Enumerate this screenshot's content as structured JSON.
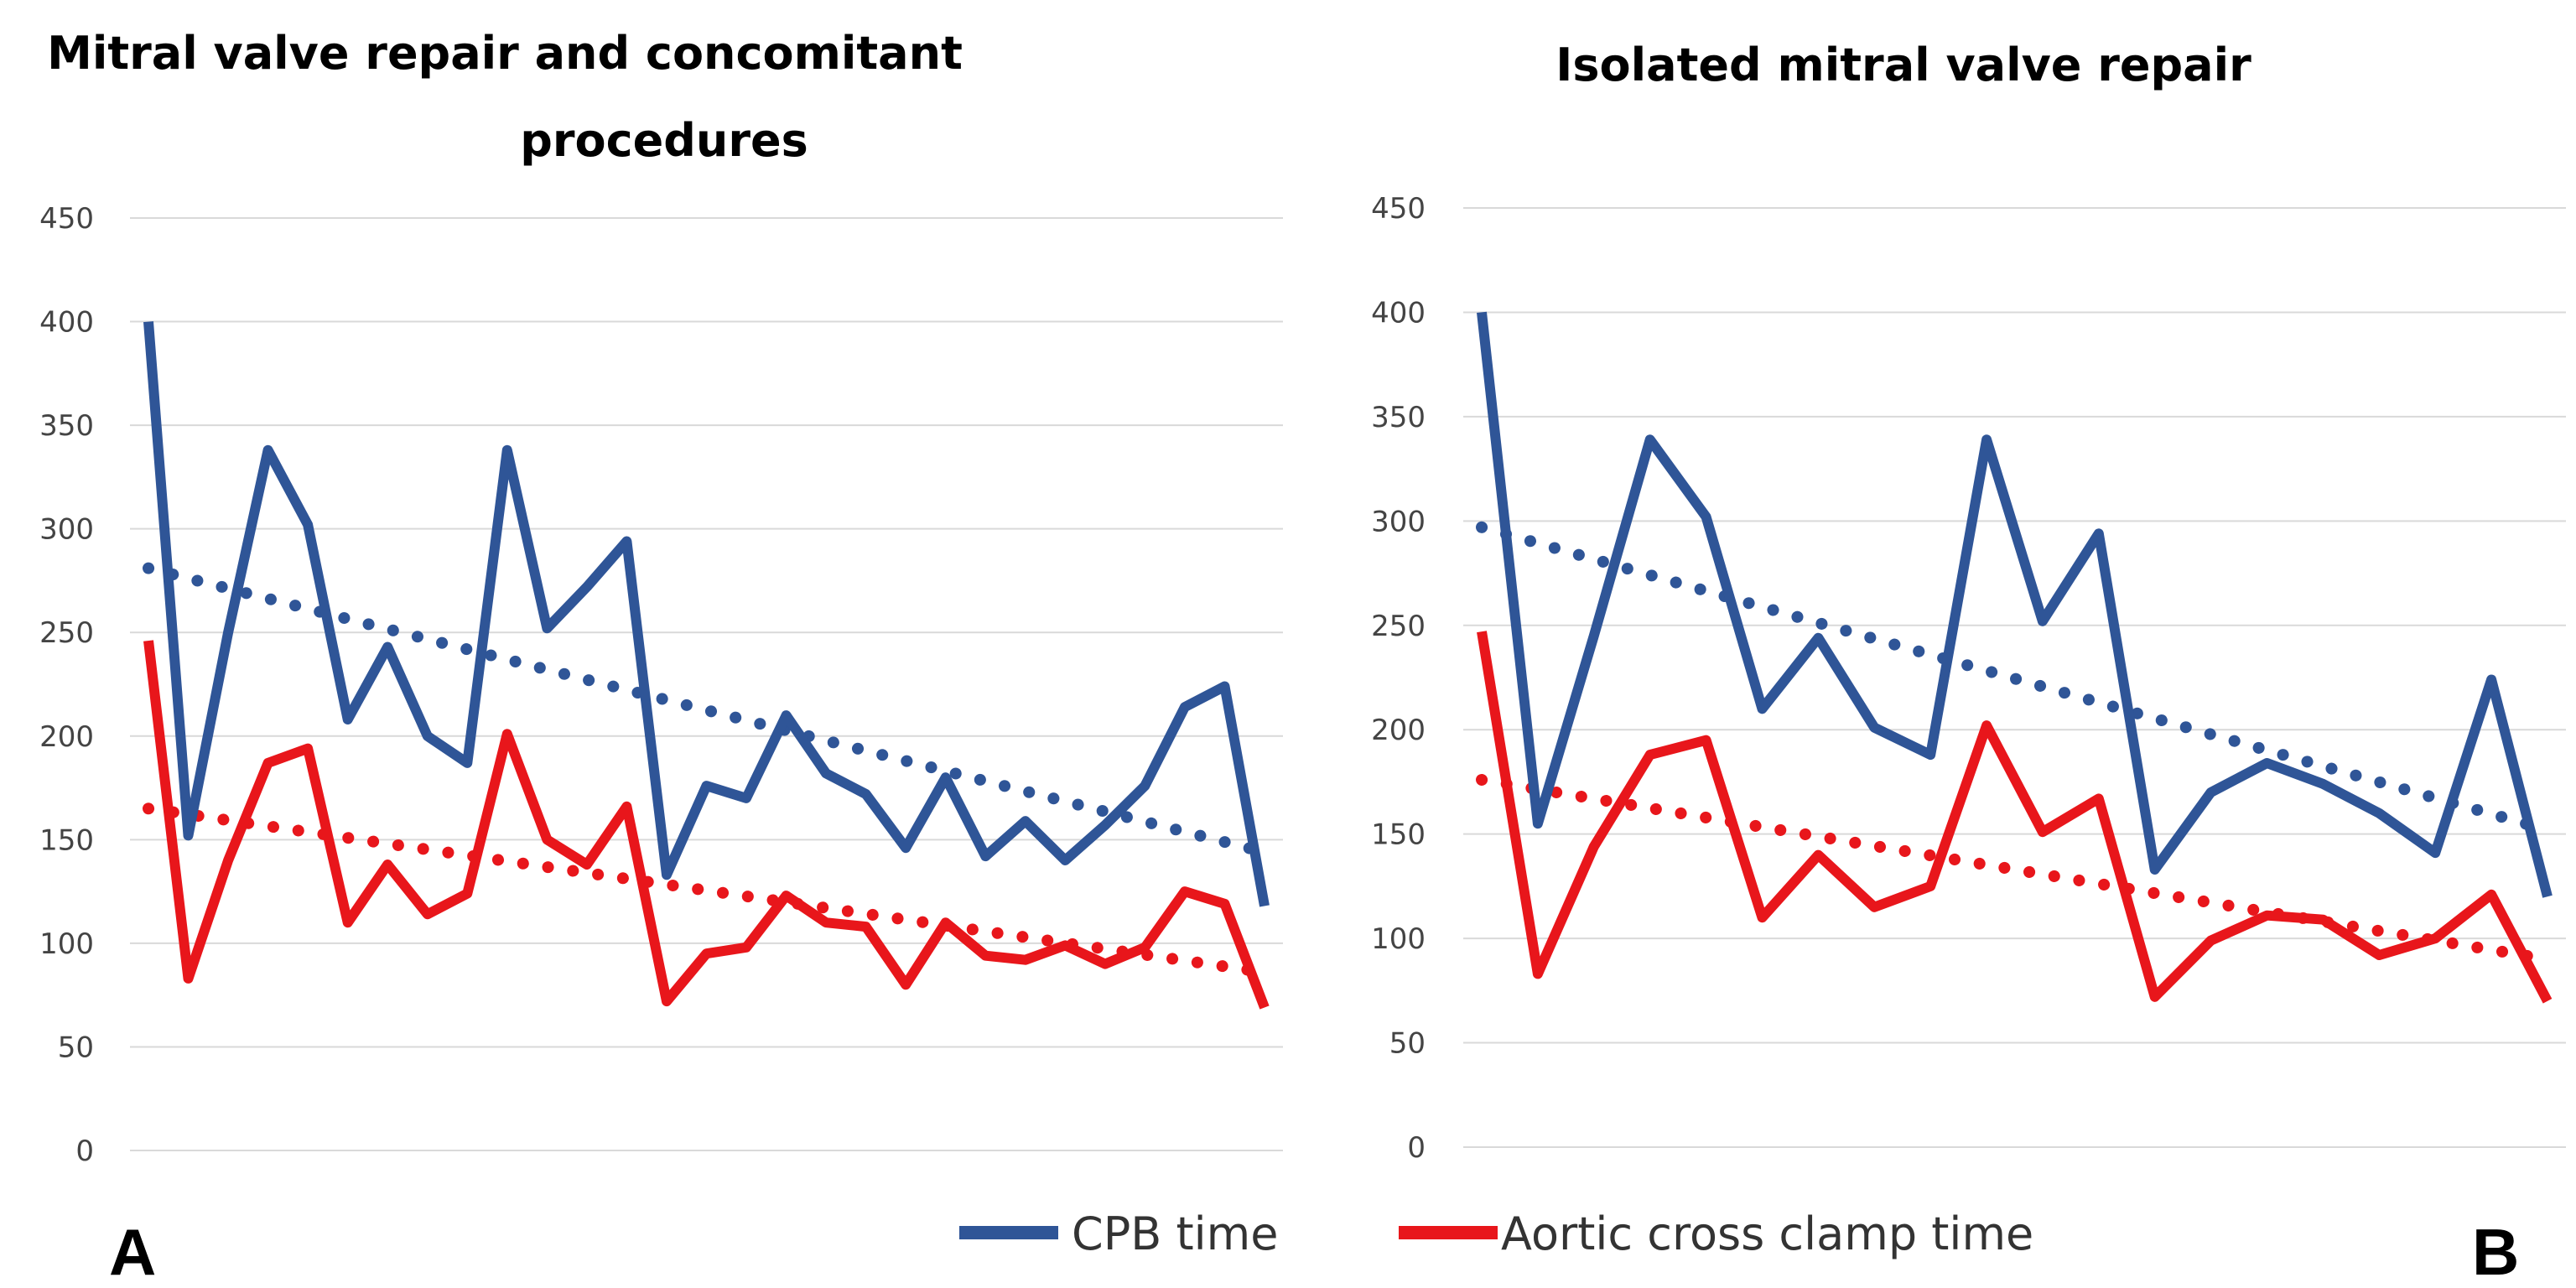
{
  "panel_labels": [
    "A",
    "B"
  ],
  "legend": {
    "cpb_label": "CPB time",
    "acc_label": "Aortic cross clamp time",
    "cpb_color": "#2F5597",
    "acc_color": "#E8161B"
  },
  "chart_data": [
    {
      "type": "line",
      "title_lines": [
        "Mitral valve repair and concomitant",
        "procedures"
      ],
      "ylim": [
        0,
        450
      ],
      "yticks": [
        "0",
        "50",
        "100",
        "150",
        "200",
        "250",
        "300",
        "350",
        "400",
        "450"
      ],
      "grid": true,
      "series": [
        {
          "name": "CPB time",
          "values": [
            400,
            152,
            250,
            338,
            302,
            208,
            243,
            200,
            187,
            338,
            252,
            272,
            294,
            133,
            176,
            170,
            210,
            182,
            172,
            146,
            180,
            142,
            159,
            140,
            157,
            176,
            214,
            224,
            118
          ]
        },
        {
          "name": "Aortic cross clamp time",
          "values": [
            246,
            83,
            140,
            187,
            194,
            110,
            138,
            114,
            124,
            201,
            150,
            138,
            166,
            72,
            95,
            98,
            123,
            110,
            108,
            80,
            110,
            94,
            92,
            99,
            90,
            98,
            125,
            119,
            69
          ]
        }
      ],
      "trendlines": [
        {
          "name": "CPB time trend",
          "start": 281,
          "end": 144
        },
        {
          "name": "Aortic cross clamp time trend",
          "start": 165,
          "end": 86
        }
      ]
    },
    {
      "type": "line",
      "title_lines": [
        "Isolated mitral valve repair"
      ],
      "ylim": [
        0,
        450
      ],
      "yticks": [
        "0",
        "50",
        "100",
        "150",
        "200",
        "250",
        "300",
        "350",
        "400",
        "450"
      ],
      "grid": true,
      "series": [
        {
          "name": "CPB time",
          "values": [
            400,
            155,
            245,
            339,
            302,
            210,
            244,
            201,
            188,
            339,
            252,
            294,
            133,
            170,
            184,
            174,
            160,
            141,
            224,
            120
          ]
        },
        {
          "name": "Aortic cross clamp time",
          "values": [
            247,
            83,
            144,
            188,
            195,
            110,
            140,
            115,
            125,
            202,
            151,
            167,
            72,
            99,
            111,
            109,
            92,
            100,
            121,
            70
          ]
        }
      ],
      "trendlines": [
        {
          "name": "CPB time trend",
          "start": 297,
          "end": 152
        },
        {
          "name": "Aortic cross clamp time trend",
          "start": 176,
          "end": 90
        }
      ]
    }
  ]
}
